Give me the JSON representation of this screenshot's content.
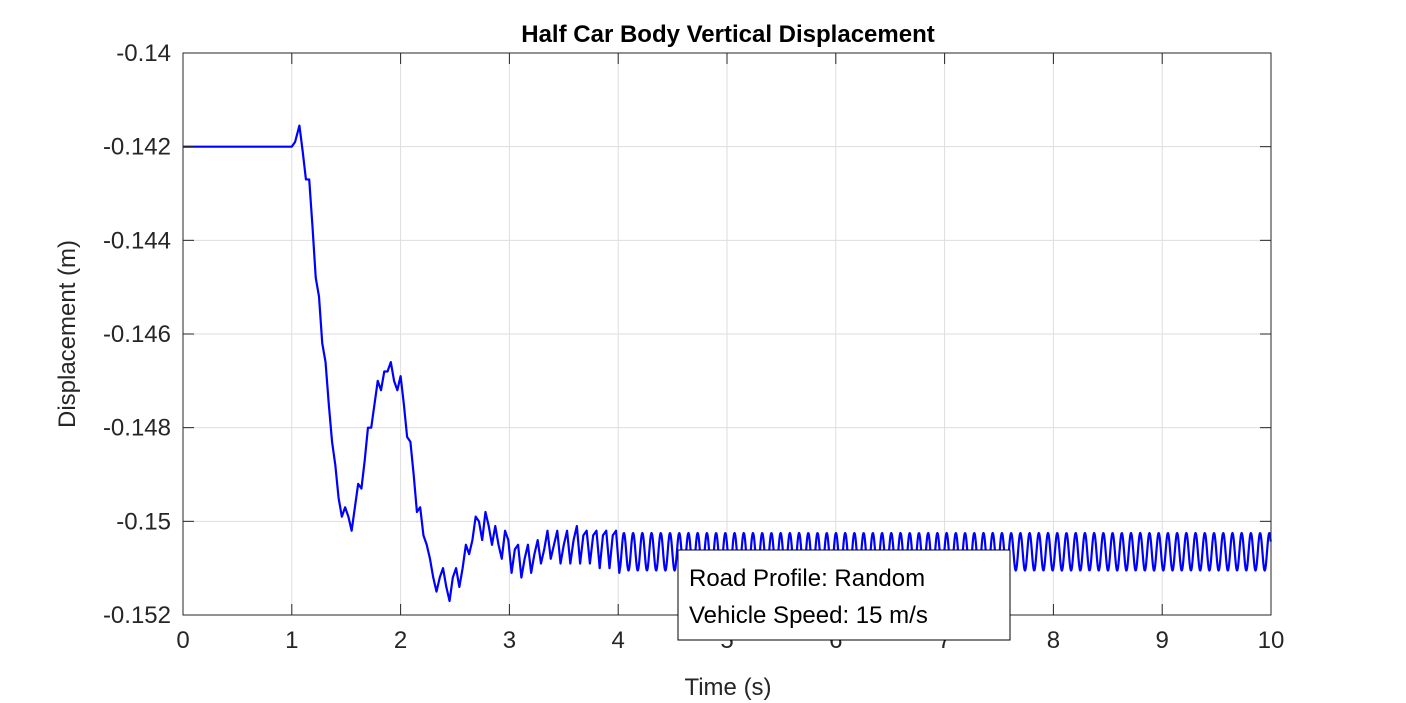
{
  "chart_data": {
    "type": "line",
    "title": "Half Car Body Vertical Displacement",
    "xlabel": "Time (s)",
    "ylabel": "Displacement (m)",
    "xlim": [
      0,
      10
    ],
    "ylim": [
      -0.152,
      -0.14
    ],
    "xticks": [
      "0",
      "1",
      "2",
      "3",
      "4",
      "5",
      "6",
      "7",
      "8",
      "9",
      "10"
    ],
    "yticks": [
      "-0.14",
      "-0.142",
      "-0.144",
      "-0.146",
      "-0.148",
      "-0.15",
      "-0.152"
    ],
    "grid": true,
    "series": [
      {
        "color": "#0000ff",
        "x": [
          0,
          1.0,
          1.03,
          1.07,
          1.1,
          1.13,
          1.16,
          1.19,
          1.22,
          1.25,
          1.28,
          1.31,
          1.34,
          1.37,
          1.4,
          1.43,
          1.46,
          1.49,
          1.52,
          1.55,
          1.58,
          1.61,
          1.64,
          1.67,
          1.7,
          1.73,
          1.76,
          1.79,
          1.82,
          1.85,
          1.88,
          1.91,
          1.94,
          1.97,
          2.0,
          2.03,
          2.06,
          2.09,
          2.12,
          2.15,
          2.18,
          2.21,
          2.24,
          2.27,
          2.3,
          2.33,
          2.36,
          2.39,
          2.42,
          2.45,
          2.48,
          2.51,
          2.54,
          2.57,
          2.6,
          2.63,
          2.66,
          2.69,
          2.72,
          2.75,
          2.78,
          2.81,
          2.84,
          2.87,
          2.9,
          2.93,
          2.96,
          2.99,
          3.02,
          3.05,
          3.08,
          3.11,
          3.14,
          3.17,
          3.2,
          3.23,
          3.26,
          3.29,
          3.32,
          3.35,
          3.38,
          3.41,
          3.44,
          3.47,
          3.5,
          3.53,
          3.56,
          3.59,
          3.62,
          3.65,
          3.68,
          3.71,
          3.74,
          3.77,
          3.8,
          3.83,
          3.86,
          3.89,
          3.92,
          3.95,
          3.98,
          4.01
        ],
        "y": [
          -0.142,
          -0.142,
          -0.1419,
          -0.14155,
          -0.1421,
          -0.1427,
          -0.1427,
          -0.1437,
          -0.1448,
          -0.1452,
          -0.1462,
          -0.1466,
          -0.1475,
          -0.1483,
          -0.1488,
          -0.1495,
          -0.1499,
          -0.1497,
          -0.1499,
          -0.1502,
          -0.1497,
          -0.1492,
          -0.1493,
          -0.1487,
          -0.148,
          -0.148,
          -0.1475,
          -0.147,
          -0.1472,
          -0.1468,
          -0.1468,
          -0.1466,
          -0.147,
          -0.1472,
          -0.1469,
          -0.1475,
          -0.1482,
          -0.1483,
          -0.149,
          -0.1498,
          -0.1497,
          -0.1503,
          -0.1505,
          -0.1508,
          -0.1512,
          -0.1515,
          -0.1512,
          -0.151,
          -0.1514,
          -0.1517,
          -0.1512,
          -0.151,
          -0.1514,
          -0.151,
          -0.1505,
          -0.1507,
          -0.1504,
          -0.1499,
          -0.15,
          -0.1504,
          -0.1498,
          -0.1501,
          -0.1505,
          -0.1501,
          -0.1505,
          -0.1508,
          -0.1502,
          -0.1504,
          -0.1511,
          -0.1506,
          -0.1505,
          -0.1512,
          -0.1508,
          -0.1505,
          -0.1511,
          -0.1507,
          -0.1504,
          -0.1509,
          -0.1506,
          -0.1502,
          -0.1508,
          -0.1505,
          -0.1502,
          -0.1509,
          -0.1505,
          -0.1502,
          -0.1509,
          -0.1504,
          -0.1501,
          -0.1509,
          -0.1503,
          -0.1502,
          -0.1509,
          -0.1503,
          -0.1502,
          -0.151,
          -0.1503,
          -0.1502,
          -0.151,
          -0.1503,
          -0.1502,
          -0.1511
        ]
      }
    ],
    "oscillation_tail": {
      "start": 4.01,
      "end": 10,
      "mean": -0.15065,
      "amplitude": 0.0004,
      "frequency_hz": 11.8
    },
    "annotation": {
      "lines": [
        "Road Profile: Random",
        "Vehicle Speed: 15 m/s"
      ]
    }
  }
}
